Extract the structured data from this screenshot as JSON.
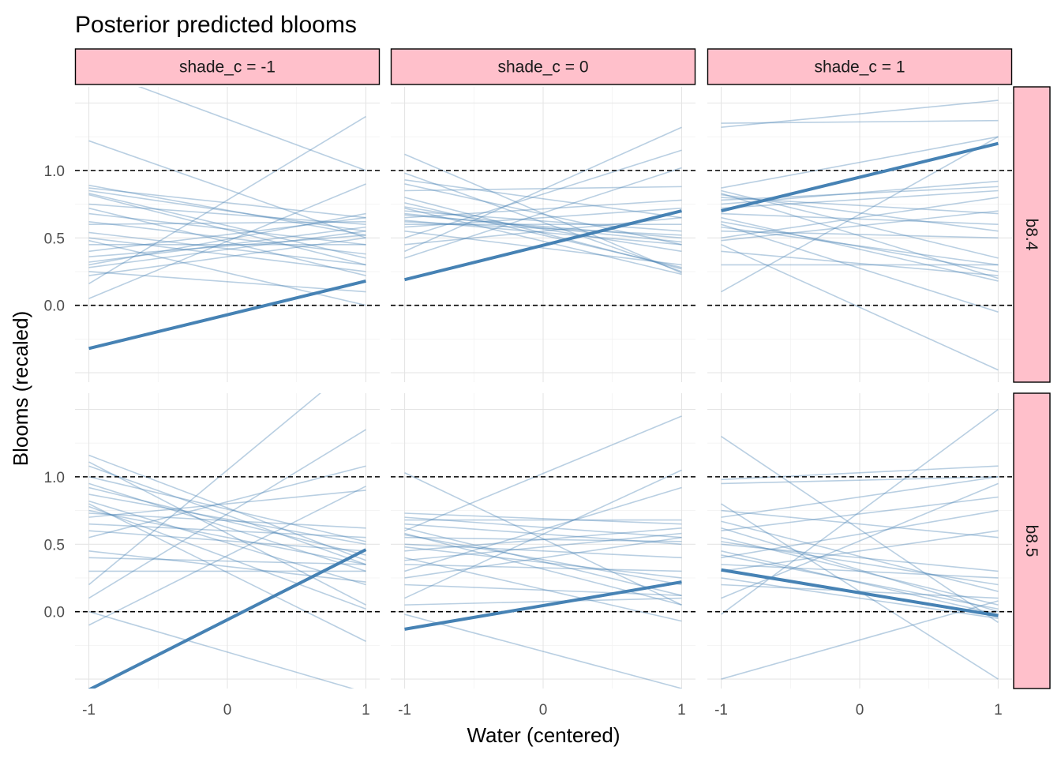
{
  "chart_data": {
    "type": "line",
    "title": "Posterior predicted blooms",
    "xlabel": "Water (centered)",
    "ylabel": "Blooms (recaled)",
    "xlim": [
      -1.1,
      1.1
    ],
    "ylim": [
      -0.57,
      1.62
    ],
    "x_ticks": [
      "-1",
      "0",
      "1"
    ],
    "y_ticks": [
      "0.0",
      "0.5",
      "1.0"
    ],
    "reference_lines": [
      0,
      1
    ],
    "column_facets": [
      "shade_c = -1",
      "shade_c = 0",
      "shade_c = 1"
    ],
    "row_facets": [
      "b8.4",
      "b8.5"
    ],
    "line_color": "#4682b4",
    "strip_fill": "#ffc0cb",
    "grid": true,
    "panels": [
      {
        "row": "b8.4",
        "col": "shade_c = -1",
        "mean": [
          -0.32,
          0.18
        ],
        "draws": [
          [
            1.76,
            1.0
          ],
          [
            1.22,
            0.5
          ],
          [
            0.89,
            0.52
          ],
          [
            0.87,
            0.65
          ],
          [
            0.85,
            0.55
          ],
          [
            0.83,
            0.35
          ],
          [
            0.75,
            0.6
          ],
          [
            0.68,
            0.45
          ],
          [
            0.6,
            0.62
          ],
          [
            0.54,
            0.3
          ],
          [
            0.45,
            0.45
          ],
          [
            0.4,
            0.65
          ],
          [
            0.36,
            0.52
          ],
          [
            0.3,
            0.68
          ],
          [
            0.25,
            0.1
          ],
          [
            0.16,
            1.4
          ],
          [
            0.05,
            0.9
          ],
          [
            0.22,
            0.5
          ],
          [
            0.5,
            0.25
          ],
          [
            0.28,
            0.55
          ],
          [
            0.48,
            0.0
          ],
          [
            0.62,
            0.38
          ],
          [
            0.72,
            0.22
          ],
          [
            0.82,
            0.3
          ],
          [
            0.32,
            0.58
          ]
        ]
      },
      {
        "row": "b8.4",
        "col": "shade_c = 0",
        "mean": [
          0.19,
          0.7
        ],
        "draws": [
          [
            1.12,
            0.24
          ],
          [
            0.98,
            0.25
          ],
          [
            0.93,
            0.65
          ],
          [
            0.9,
            0.45
          ],
          [
            0.85,
            0.88
          ],
          [
            0.8,
            0.27
          ],
          [
            0.73,
            0.4
          ],
          [
            0.7,
            0.55
          ],
          [
            0.67,
            0.5
          ],
          [
            0.65,
            0.78
          ],
          [
            0.63,
            0.45
          ],
          [
            0.6,
            0.6
          ],
          [
            0.55,
            0.3
          ],
          [
            0.5,
            1.15
          ],
          [
            0.45,
            0.65
          ],
          [
            0.4,
            1.32
          ],
          [
            0.35,
            1.02
          ],
          [
            0.72,
            0.23
          ],
          [
            0.58,
            0.72
          ],
          [
            0.68,
            0.47
          ],
          [
            0.76,
            0.28
          ],
          [
            0.62,
            0.52
          ]
        ]
      },
      {
        "row": "b8.4",
        "col": "shade_c = 1",
        "mean": [
          0.7,
          1.2
        ],
        "draws": [
          [
            1.35,
            1.37
          ],
          [
            1.32,
            1.52
          ],
          [
            0.87,
            1.25
          ],
          [
            0.85,
            0.35
          ],
          [
            0.83,
            0.2
          ],
          [
            0.8,
            0.68
          ],
          [
            0.78,
            0.88
          ],
          [
            0.75,
            0.92
          ],
          [
            0.72,
            0.85
          ],
          [
            0.68,
            0.6
          ],
          [
            0.62,
            0.25
          ],
          [
            0.6,
            -0.05
          ],
          [
            0.55,
            0.5
          ],
          [
            0.5,
            0.8
          ],
          [
            0.45,
            -0.48
          ],
          [
            0.4,
            0.22
          ],
          [
            0.3,
            0.3
          ],
          [
            0.1,
            1.25
          ],
          [
            0.58,
            0.3
          ],
          [
            0.82,
            0.55
          ],
          [
            0.48,
            0.7
          ],
          [
            0.65,
            0.18
          ]
        ]
      },
      {
        "row": "b8.5",
        "col": "shade_c = -1",
        "mean": [
          -0.58,
          0.46
        ],
        "draws": [
          [
            1.16,
            0.38
          ],
          [
            1.11,
            0.05
          ],
          [
            1.08,
            0.35
          ],
          [
            1.0,
            0.52
          ],
          [
            0.95,
            0.3
          ],
          [
            0.87,
            0.5
          ],
          [
            0.82,
            0.2
          ],
          [
            0.78,
            0.02
          ],
          [
            0.75,
            0.35
          ],
          [
            0.73,
            0.62
          ],
          [
            0.7,
            0.9
          ],
          [
            0.6,
            0.45
          ],
          [
            0.55,
            1.08
          ],
          [
            0.45,
            0.22
          ],
          [
            0.4,
            0.35
          ],
          [
            0.3,
            0.3
          ],
          [
            0.2,
            1.9
          ],
          [
            0.1,
            1.35
          ],
          [
            0.0,
            -0.6
          ],
          [
            -0.1,
            0.93
          ],
          [
            0.8,
            -0.22
          ],
          [
            0.65,
            0.55
          ],
          [
            0.92,
            0.42
          ]
        ]
      },
      {
        "row": "b8.5",
        "col": "shade_c = 0",
        "mean": [
          -0.13,
          0.22
        ],
        "draws": [
          [
            1.03,
            0.05
          ],
          [
            0.73,
            0.65
          ],
          [
            0.7,
            0.55
          ],
          [
            0.65,
            0.5
          ],
          [
            0.62,
            0.12
          ],
          [
            0.6,
            1.45
          ],
          [
            0.57,
            0.2
          ],
          [
            0.55,
            0.52
          ],
          [
            0.5,
            0.4
          ],
          [
            0.45,
            0.62
          ],
          [
            0.4,
            -0.07
          ],
          [
            0.35,
            0.3
          ],
          [
            0.3,
            0.92
          ],
          [
            0.25,
            0.55
          ],
          [
            0.2,
            0.12
          ],
          [
            0.1,
            1.05
          ],
          [
            0.05,
            0.1
          ],
          [
            -0.02,
            -0.57
          ],
          [
            0.48,
            0.25
          ],
          [
            0.68,
            0.68
          ],
          [
            0.58,
            0.05
          ],
          [
            0.38,
            0.58
          ]
        ]
      },
      {
        "row": "b8.5",
        "col": "shade_c = 1",
        "mean": [
          0.31,
          -0.03
        ],
        "draws": [
          [
            1.3,
            -0.08
          ],
          [
            0.98,
            1.08
          ],
          [
            0.75,
            0.55
          ],
          [
            0.7,
            1.0
          ],
          [
            0.67,
            0.15
          ],
          [
            0.62,
            0.0
          ],
          [
            0.55,
            0.05
          ],
          [
            0.5,
            0.3
          ],
          [
            0.45,
            -0.02
          ],
          [
            0.4,
            0.75
          ],
          [
            0.35,
            0.25
          ],
          [
            0.3,
            0.6
          ],
          [
            0.25,
            -0.05
          ],
          [
            0.2,
            0.1
          ],
          [
            -0.02,
            1.5
          ],
          [
            -0.5,
            0.08
          ],
          [
            0.8,
            -0.5
          ],
          [
            0.6,
            0.85
          ],
          [
            0.52,
            0.2
          ],
          [
            0.1,
            0.95
          ],
          [
            0.42,
            0.02
          ],
          [
            0.95,
            1.0
          ]
        ]
      }
    ]
  }
}
